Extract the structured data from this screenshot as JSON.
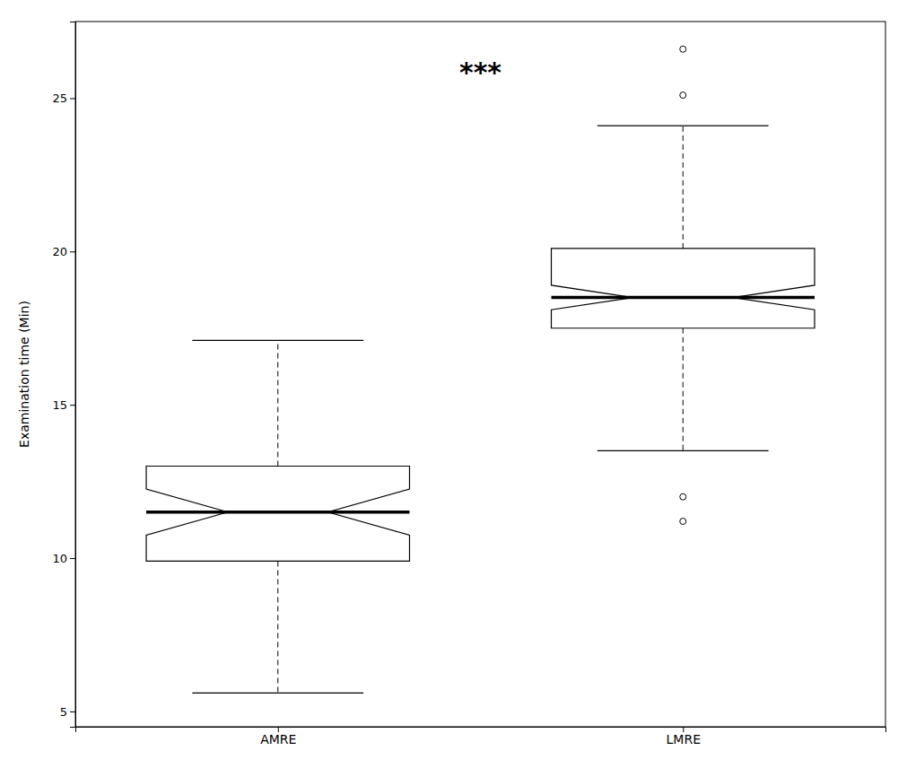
{
  "chart_data": {
    "type": "box",
    "categories": [
      "AMRE",
      "LMRE"
    ],
    "boxes": [
      {
        "median": 11.5,
        "q1": 9.9,
        "q3": 13.0,
        "whisker_low": 5.6,
        "whisker_high": 17.1,
        "outliers": [],
        "notch_low": 10.75,
        "notch_high": 12.25
      },
      {
        "median": 18.5,
        "q1": 17.5,
        "q3": 20.1,
        "whisker_low": 13.5,
        "whisker_high": 24.1,
        "outliers": [
          11.2,
          12.0,
          25.1,
          26.6
        ],
        "notch_low": 18.1,
        "notch_high": 18.9
      }
    ],
    "ylabel": "Examination time (Min)",
    "ylim": [
      4.5,
      27.5
    ],
    "yticks": [
      5,
      10,
      15,
      20,
      25
    ],
    "annotations": [
      {
        "text": "***",
        "y": 25.8
      }
    ],
    "color": "white",
    "line_style": "dashed",
    "grid": false
  }
}
